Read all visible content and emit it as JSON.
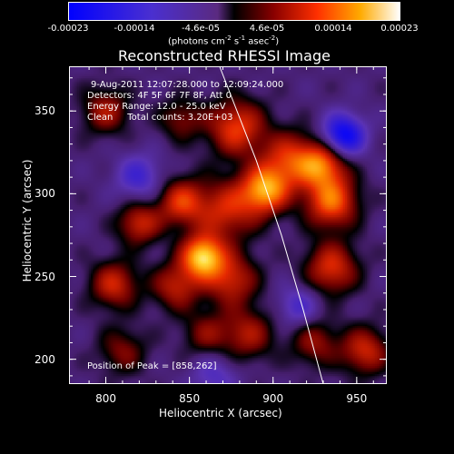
{
  "chart_data": {
    "type": "heatmap",
    "title": "Reconstructed RHESSI Image",
    "xlabel": "Heliocentric X (arcsec)",
    "ylabel": "Heliocentric Y (arcsec)",
    "xlim": [
      778,
      968
    ],
    "ylim": [
      185,
      377
    ],
    "x_ticks": [
      "800",
      "850",
      "900",
      "950"
    ],
    "y_ticks": [
      "200",
      "250",
      "300",
      "350"
    ],
    "colorbar": {
      "ticks": [
        "-0.00023",
        "-0.00014",
        "-4.6e-05",
        "4.6e-05",
        "0.00014",
        "0.00023"
      ],
      "unit_prefix": "(photons cm",
      "unit_sup1": "-2",
      "unit_mid": " s",
      "unit_sup2": "-1",
      "unit_mid2": " asec",
      "unit_sup3": "-2",
      "unit_suffix": ")",
      "range": [
        -0.00023,
        0.00023
      ]
    },
    "annotations": {
      "time_range": "9-Aug-2011 12:07:28.000 to 12:09:24.000",
      "detectors": "Detectors: 4F 5F 6F 7F 8F, Att 0",
      "energy": "Energy Range: 12.0 - 25.0 keV",
      "clean": "Clean     Total counts: 3.20E+03",
      "peak": "Position of Peak = [858,262]"
    },
    "peak_position": [
      858,
      262
    ],
    "blobs": [
      {
        "x": 858,
        "y": 262,
        "amp": 1.0,
        "s": 9
      },
      {
        "x": 895,
        "y": 302,
        "amp": 0.85,
        "s": 10
      },
      {
        "x": 910,
        "y": 320,
        "amp": 0.6,
        "s": 12
      },
      {
        "x": 935,
        "y": 295,
        "amp": 0.75,
        "s": 11
      },
      {
        "x": 930,
        "y": 318,
        "amp": 0.7,
        "s": 10
      },
      {
        "x": 878,
        "y": 340,
        "amp": 0.65,
        "s": 12
      },
      {
        "x": 872,
        "y": 290,
        "amp": 0.55,
        "s": 13
      },
      {
        "x": 845,
        "y": 295,
        "amp": 0.6,
        "s": 10
      },
      {
        "x": 820,
        "y": 282,
        "amp": 0.55,
        "s": 9
      },
      {
        "x": 805,
        "y": 245,
        "amp": 0.55,
        "s": 10
      },
      {
        "x": 842,
        "y": 244,
        "amp": 0.5,
        "s": 10
      },
      {
        "x": 875,
        "y": 248,
        "amp": 0.55,
        "s": 11
      },
      {
        "x": 885,
        "y": 215,
        "amp": 0.45,
        "s": 11
      },
      {
        "x": 860,
        "y": 215,
        "amp": 0.35,
        "s": 10
      },
      {
        "x": 935,
        "y": 255,
        "amp": 0.6,
        "s": 11
      },
      {
        "x": 955,
        "y": 205,
        "amp": 0.55,
        "s": 10
      },
      {
        "x": 925,
        "y": 210,
        "amp": 0.4,
        "s": 10
      },
      {
        "x": 800,
        "y": 350,
        "amp": 0.45,
        "s": 10
      },
      {
        "x": 810,
        "y": 205,
        "amp": 0.35,
        "s": 10
      },
      {
        "x": 845,
        "y": 345,
        "amp": 0.35,
        "s": 9
      },
      {
        "x": 942,
        "y": 335,
        "amp": -0.8,
        "s": 9
      },
      {
        "x": 820,
        "y": 310,
        "amp": -0.4,
        "s": 10
      },
      {
        "x": 915,
        "y": 232,
        "amp": -0.35,
        "s": 9
      },
      {
        "x": 865,
        "y": 190,
        "amp": -0.3,
        "s": 10
      }
    ],
    "limb_curve": [
      [
        868,
        377
      ],
      [
        890,
        320
      ],
      [
        905,
        275
      ],
      [
        918,
        230
      ],
      [
        930,
        185
      ]
    ]
  }
}
